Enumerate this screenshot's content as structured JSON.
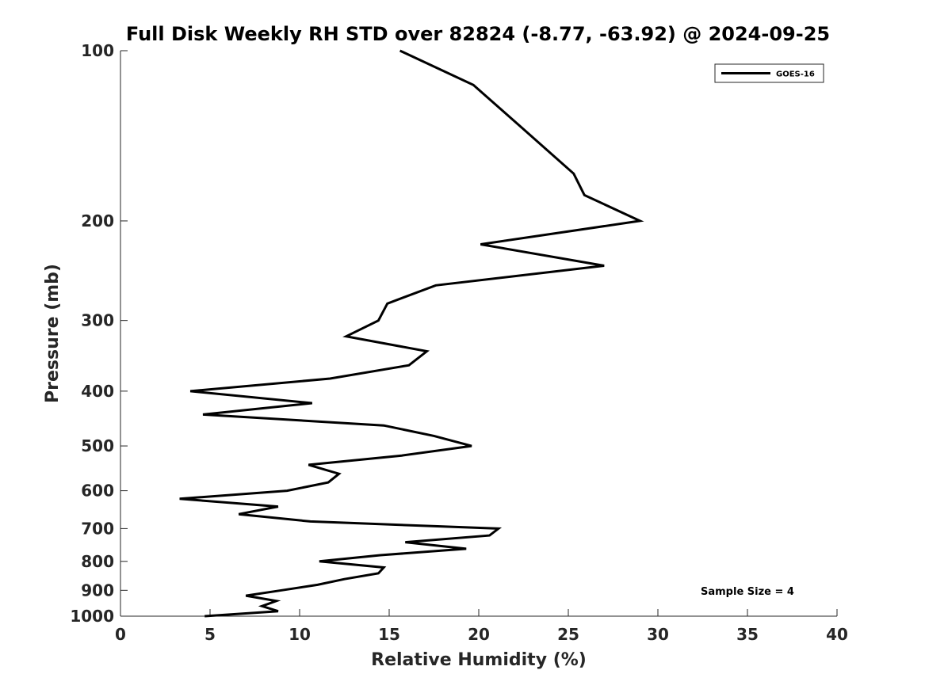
{
  "chart_data": {
    "type": "line",
    "title": "Full Disk Weekly RH STD over 82824 (-8.77, -63.92) @ 2024-09-25",
    "xlabel": "Relative Humidity (%)",
    "ylabel": "Pressure (mb)",
    "xlim": [
      0,
      40
    ],
    "ylim": [
      1000,
      100
    ],
    "yscale": "log",
    "y_reversed": true,
    "grid": false,
    "legend_position": "top-right",
    "x_ticks": [
      "0",
      "5",
      "10",
      "15",
      "20",
      "25",
      "30",
      "35",
      "40"
    ],
    "y_ticks": [
      "100",
      "200",
      "300",
      "400",
      "500",
      "600",
      "700",
      "800",
      "900",
      "1000"
    ],
    "series": [
      {
        "name": "GOES-16",
        "color": "#000000",
        "points": [
          [
            15.6,
            100
          ],
          [
            19.7,
            115
          ],
          [
            22.2,
            135
          ],
          [
            25.3,
            165
          ],
          [
            25.9,
            180
          ],
          [
            29.0,
            200
          ],
          [
            20.1,
            220
          ],
          [
            27.0,
            240
          ],
          [
            17.6,
            260
          ],
          [
            14.9,
            280
          ],
          [
            14.4,
            300
          ],
          [
            12.6,
            320
          ],
          [
            17.1,
            340
          ],
          [
            16.1,
            360
          ],
          [
            11.7,
            380
          ],
          [
            3.9,
            400
          ],
          [
            10.7,
            420
          ],
          [
            4.6,
            440
          ],
          [
            14.7,
            460
          ],
          [
            17.5,
            480
          ],
          [
            19.6,
            500
          ],
          [
            15.7,
            520
          ],
          [
            10.5,
            540
          ],
          [
            12.2,
            560
          ],
          [
            11.6,
            580
          ],
          [
            9.3,
            600
          ],
          [
            3.3,
            620
          ],
          [
            8.8,
            640
          ],
          [
            6.6,
            660
          ],
          [
            10.6,
            680
          ],
          [
            21.1,
            700
          ],
          [
            20.6,
            720
          ],
          [
            15.9,
            740
          ],
          [
            19.3,
            760
          ],
          [
            14.5,
            780
          ],
          [
            11.1,
            800
          ],
          [
            14.7,
            820
          ],
          [
            14.4,
            840
          ],
          [
            12.5,
            860
          ],
          [
            11.0,
            880
          ],
          [
            9.0,
            900
          ],
          [
            7.0,
            920
          ],
          [
            8.7,
            940
          ],
          [
            7.9,
            960
          ],
          [
            8.8,
            980
          ],
          [
            4.7,
            1000
          ]
        ]
      }
    ],
    "annotation": "Sample Size = 4"
  }
}
